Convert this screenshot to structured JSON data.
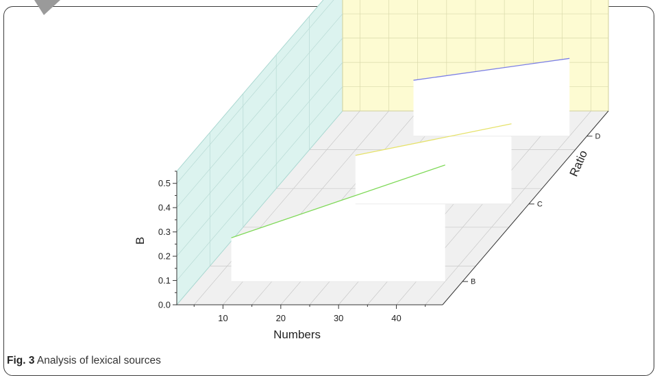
{
  "caption": {
    "label": "Fig. 3",
    "text": " Analysis of lexical sources"
  },
  "colors": {
    "back_wall": "#fdfbd2",
    "side_wall": "#dcf3ef",
    "floor": "#f0f0f0",
    "series_green": "#7ed957",
    "series_blue": "#7b7fe6",
    "series_yellow": "#e6e26a",
    "series_cyan": "#6fd8e0"
  },
  "chart_data": {
    "type": "3d-line",
    "xlabel": "Numbers",
    "ylabel": "Ratio",
    "zlabel": "B",
    "x_ticks": [
      10,
      20,
      30,
      40
    ],
    "x_range": [
      2,
      48
    ],
    "y_categories": [
      "B",
      "C",
      "D"
    ],
    "z_ticks": [
      0.0,
      0.1,
      0.2,
      0.3,
      0.4,
      0.5
    ],
    "z_range": [
      0,
      0.55
    ],
    "series": [
      {
        "category": "B",
        "x": [
          8,
          45
        ],
        "z": [
          0.18,
          0.48
        ]
      },
      {
        "category": "C",
        "x": [
          18,
          45
        ],
        "z": [
          0.2,
          0.33
        ]
      },
      {
        "category": "D",
        "x": [
          18,
          45
        ],
        "z": [
          0.23,
          0.32
        ]
      }
    ]
  }
}
